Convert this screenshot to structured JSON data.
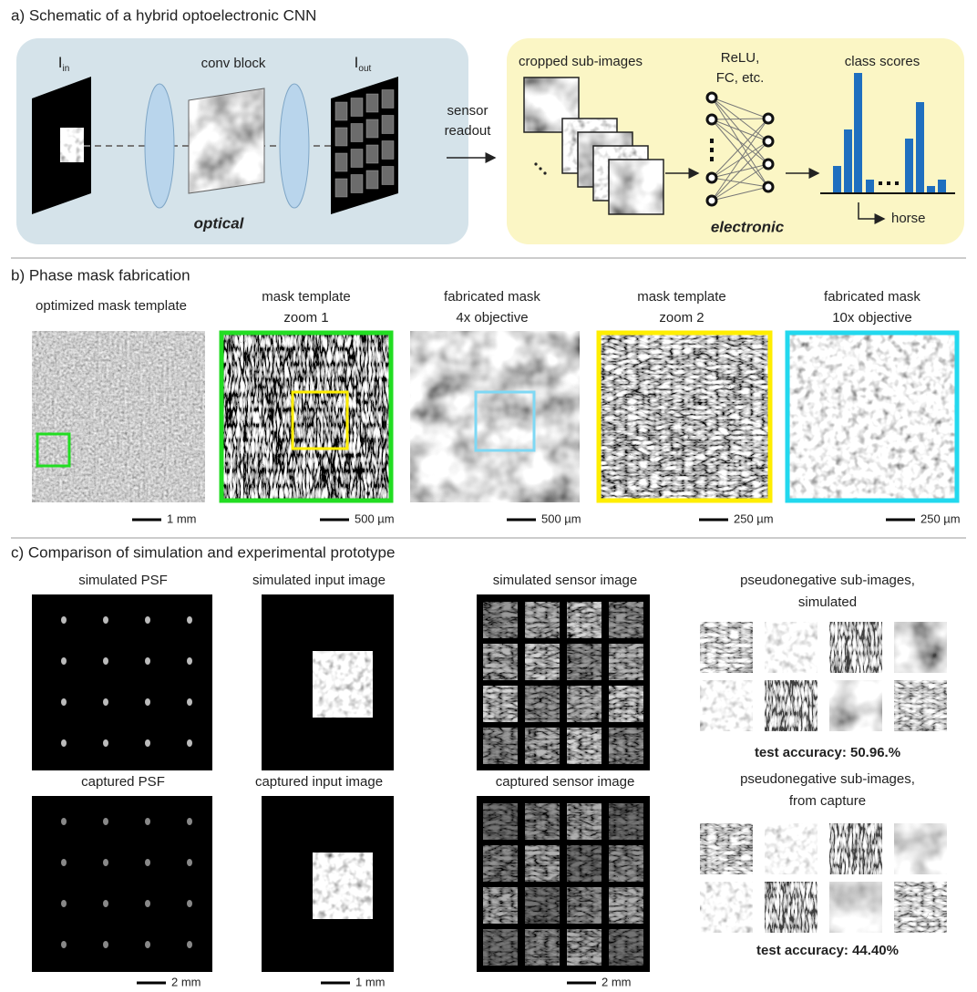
{
  "panel_a": {
    "title": "a) Schematic of a hybrid optoelectronic CNN",
    "input_label": {
      "base": "I",
      "sub": "in"
    },
    "conv_block": "conv block",
    "output_label": {
      "base": "I",
      "sub": "out"
    },
    "optical": "optical",
    "sensor_readout": [
      "sensor",
      "readout"
    ],
    "cropped": "cropped sub-images",
    "layers": [
      "ReLU,",
      "FC, etc."
    ],
    "class_scores": "class scores",
    "electronic": "electronic",
    "horse": "horse"
  },
  "panel_b": {
    "title": "b) Phase mask fabrication",
    "panels": [
      {
        "label": [
          "optimized mask template"
        ],
        "scale": "1 mm"
      },
      {
        "label": [
          "mask template",
          "zoom 1"
        ],
        "scale": "500 µm"
      },
      {
        "label": [
          "fabricated mask",
          "4x objective"
        ],
        "scale": "500 µm"
      },
      {
        "label": [
          "mask template",
          "zoom 2"
        ],
        "scale": "250 µm"
      },
      {
        "label": [
          "fabricated mask",
          "10x objective"
        ],
        "scale": "250 µm"
      }
    ]
  },
  "panel_c": {
    "title": "c) Comparison of simulation and experimental prototype",
    "rows": [
      {
        "psf": "simulated PSF",
        "input": "simulated input image",
        "sensor": "simulated sensor image",
        "sub_images": [
          "pseudonegative sub-images,",
          "simulated"
        ],
        "accuracy": "test accuracy: 50.96.%"
      },
      {
        "psf": "captured PSF",
        "input": "captured input image",
        "sensor": "captured sensor image",
        "sub_images": [
          "pseudonegative sub-images,",
          "from capture"
        ],
        "accuracy": "test accuracy: 44.40%"
      }
    ],
    "scales": [
      "2 mm",
      "1 mm",
      "2 mm"
    ]
  }
}
